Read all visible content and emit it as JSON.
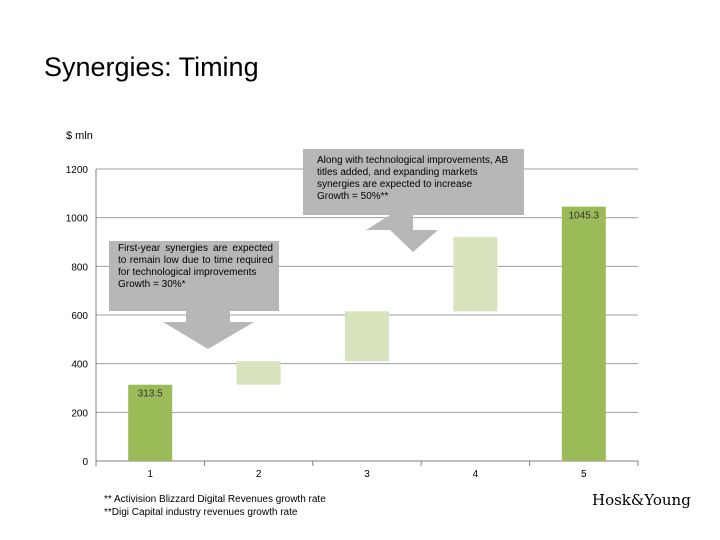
{
  "slide": {
    "title": "Synergies: Timing",
    "unit": "$ mln",
    "callouts": [
      {
        "lines": [
          "First-year synergies are expected to remain low due to time required for technological improvements",
          "Growth = 30%*"
        ]
      },
      {
        "lines": [
          "Along with technological improvements, AB titles added, and expanding markets synergies are expected to increase",
          "Growth = 50%**"
        ]
      }
    ],
    "footnotes": [
      "** Activision Blizzard Digital Revenues growth rate",
      "**Digi Capital industry revenues growth rate"
    ],
    "brand": "Hosk&Young"
  },
  "colors": {
    "total_bar": "#9bbb59",
    "step_bar": "#d7e4bd",
    "callout_bg": "#b7b7b7",
    "arrow": "#b7b7b7",
    "grid": "#9f9f9f"
  },
  "chart_data": {
    "type": "bar",
    "subtype": "waterfall",
    "categories": [
      "1",
      "2",
      "3",
      "4",
      "5"
    ],
    "bars": [
      {
        "category": "1",
        "low": 0,
        "high": 313.5,
        "kind": "total",
        "label": "313.5"
      },
      {
        "category": "2",
        "low": 313.5,
        "high": 410,
        "kind": "step",
        "label": ""
      },
      {
        "category": "3",
        "low": 410,
        "high": 615,
        "kind": "step",
        "label": ""
      },
      {
        "category": "4",
        "low": 615,
        "high": 920,
        "kind": "step",
        "label": ""
      },
      {
        "category": "5",
        "low": 0,
        "high": 1045.3,
        "kind": "total",
        "label": "1045.3"
      }
    ],
    "ylim": [
      0,
      1200
    ],
    "yticks": [
      0,
      200,
      400,
      600,
      800,
      1000,
      1200
    ],
    "grid": true,
    "xlabel": "",
    "ylabel": "$ mln",
    "legend": "none"
  }
}
